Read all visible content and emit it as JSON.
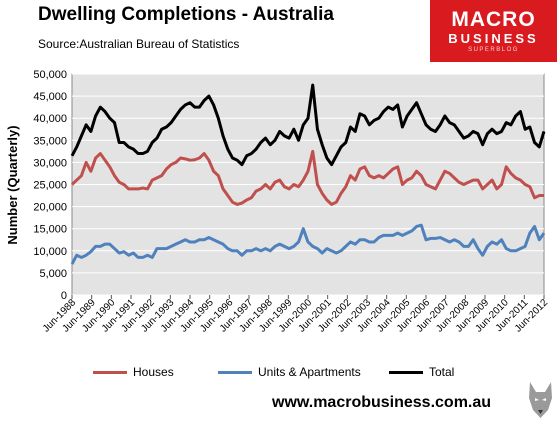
{
  "header": {
    "title": "Dwelling Completions - Australia",
    "source": "Source:Australian Bureau of Statistics"
  },
  "logo": {
    "main": "MACRO",
    "sub": "BUSINESS",
    "tagline": "SUPERBLOG"
  },
  "footer": {
    "url": "www.macrobusiness.com.au",
    "mascot_icon": "wolf-head-icon"
  },
  "chart_data": {
    "type": "line",
    "ylabel": "Number (Quarterly)",
    "ylim": [
      0,
      50000
    ],
    "yticks": [
      0,
      5000,
      10000,
      15000,
      20000,
      25000,
      30000,
      35000,
      40000,
      45000,
      50000
    ],
    "ytick_labels": [
      "0",
      "5,000",
      "10,000",
      "15,000",
      "20,000",
      "25,000",
      "30,000",
      "35,000",
      "40,000",
      "45,000",
      "50,000"
    ],
    "x_labels": [
      "Jun-1988",
      "Jun-1989",
      "Jun-1990",
      "Jun-1991",
      "Jun-1992",
      "Jun-1993",
      "Jun-1994",
      "Jun-1995",
      "Jun-1996",
      "Jun-1997",
      "Jun-1998",
      "Jun-1999",
      "Jun-2000",
      "Jun-2001",
      "Jun-2002",
      "Jun-2003",
      "Jun-2004",
      "Jun-2005",
      "Jun-2006",
      "Jun-2007",
      "Jun-2008",
      "Jun-2009",
      "Jun-2010",
      "Jun-2011",
      "Jun-2012"
    ],
    "grid": true,
    "legend_position": "bottom",
    "plot_background": "#e3e3e3",
    "series": [
      {
        "name": "Houses",
        "color": "#c0504d",
        "values": [
          25000,
          26000,
          27000,
          30000,
          28000,
          31000,
          32000,
          30500,
          29000,
          27000,
          25500,
          25000,
          24000,
          24000,
          24000,
          24200,
          24000,
          26000,
          26500,
          27000,
          28500,
          29500,
          30000,
          31000,
          30800,
          30500,
          30600,
          31000,
          32000,
          30500,
          28000,
          27000,
          24000,
          22500,
          21000,
          20500,
          20800,
          21500,
          22000,
          23500,
          24000,
          25000,
          24000,
          25500,
          26000,
          24500,
          24000,
          25000,
          24500,
          26000,
          28000,
          32500,
          25000,
          23000,
          21500,
          20500,
          21000,
          23000,
          24500,
          27000,
          26000,
          28500,
          29000,
          27000,
          26500,
          27000,
          26500,
          27500,
          28500,
          29000,
          25000,
          26000,
          26500,
          28000,
          27000,
          25000,
          24500,
          24000,
          26000,
          28000,
          27500,
          26500,
          25500,
          25000,
          25500,
          26000,
          26000,
          24000,
          25000,
          26000,
          24000,
          25000,
          29000,
          27500,
          26500,
          26000,
          25000,
          24500,
          22000,
          22500,
          22500
        ]
      },
      {
        "name": "Units & Apartments",
        "color": "#4f81bd",
        "values": [
          7000,
          9000,
          8500,
          9000,
          9800,
          11000,
          11000,
          11500,
          11500,
          10500,
          9500,
          9800,
          9000,
          9500,
          8500,
          8500,
          9000,
          8500,
          10500,
          10500,
          10500,
          11000,
          11500,
          12000,
          12500,
          12000,
          12000,
          12500,
          12500,
          13000,
          12500,
          12000,
          11500,
          10500,
          10000,
          10000,
          9000,
          10000,
          10000,
          10500,
          10000,
          10500,
          10000,
          11000,
          11500,
          11000,
          10500,
          11000,
          12000,
          15000,
          12000,
          11000,
          10500,
          9500,
          10500,
          10000,
          9500,
          10000,
          11000,
          12000,
          11500,
          12500,
          12500,
          12000,
          12000,
          13000,
          13500,
          13500,
          13500,
          14000,
          13500,
          14000,
          14500,
          15500,
          15800,
          12500,
          12800,
          12800,
          13000,
          12500,
          12000,
          12500,
          12000,
          11000,
          11000,
          12500,
          10500,
          9000,
          11000,
          12000,
          11500,
          12500,
          10500,
          10000,
          10000,
          10500,
          11000,
          14000,
          15500,
          12500,
          14000
        ]
      },
      {
        "name": "Total",
        "color": "#000000",
        "values": [
          31500,
          33500,
          36000,
          38500,
          37000,
          40500,
          42500,
          41500,
          40000,
          39000,
          34500,
          34500,
          33500,
          33000,
          32000,
          32000,
          32500,
          34500,
          35500,
          37500,
          38000,
          39000,
          40500,
          42000,
          43000,
          43500,
          42500,
          42500,
          44000,
          45000,
          43000,
          40000,
          36000,
          33000,
          31000,
          30500,
          29500,
          31500,
          32000,
          33000,
          34500,
          35500,
          34000,
          35000,
          37000,
          36000,
          35500,
          37500,
          35000,
          38500,
          40000,
          47500,
          37500,
          34000,
          31000,
          29500,
          31500,
          33500,
          34500,
          38000,
          37000,
          41000,
          40500,
          38500,
          39500,
          40000,
          41500,
          42500,
          42000,
          43000,
          38000,
          40500,
          42000,
          43500,
          41000,
          38500,
          37500,
          37000,
          38500,
          40500,
          39000,
          38500,
          37000,
          35500,
          36000,
          37000,
          36500,
          34000,
          36500,
          37500,
          36500,
          37000,
          39000,
          38500,
          40500,
          41500,
          37500,
          38000,
          34500,
          33500,
          37000
        ]
      }
    ]
  }
}
